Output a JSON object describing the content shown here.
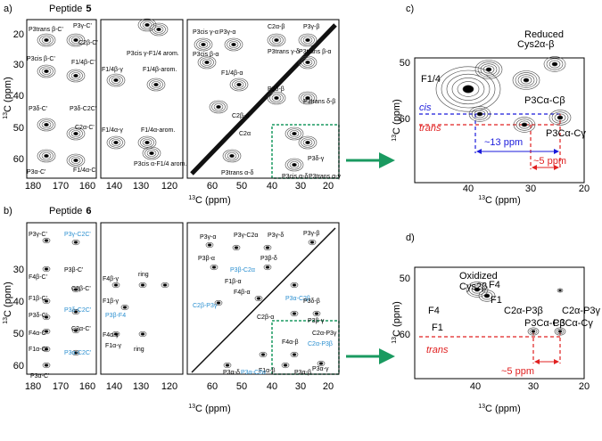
{
  "a": {
    "label": "a)",
    "title": "Peptide",
    "number": "5",
    "axis_sup": "13",
    "axis_text": "C (ppm)",
    "yticks": [
      20,
      30,
      40,
      50,
      60
    ],
    "xticks": [
      [
        180,
        170,
        160
      ],
      [
        140,
        130,
        120
      ],
      [
        60,
        50,
        40,
        30,
        20
      ]
    ],
    "peaks": [
      {
        "text": "P3trans β-C'"
      },
      {
        "text": "P3γ-C'"
      },
      {
        "text": "C2β-C'"
      },
      {
        "text": "P3cis β-C'"
      },
      {
        "text": "F1/4β-C'"
      },
      {
        "text": "P3δ-C'"
      },
      {
        "text": "P3δ-C2C'"
      },
      {
        "text": "C2α-C'"
      },
      {
        "text": "F1/4α-C'"
      },
      {
        "text": "P3α-C'"
      },
      {
        "text": "P3cis γ-F1/4 arom."
      },
      {
        "text": "F1/4β-γ"
      },
      {
        "text": "F1/4β-arom."
      },
      {
        "text": "F1/4α-γ"
      },
      {
        "text": "F1/4α-arom."
      },
      {
        "text": "P3cis α-F1/4 arom."
      },
      {
        "text": "P3cis γ-α"
      },
      {
        "text": "P3γ-α"
      },
      {
        "text": "C2α-β"
      },
      {
        "text": "P3γ-β"
      },
      {
        "text": "P3cis β-α"
      },
      {
        "text": "P3trans γ-δ"
      },
      {
        "text": "P3trans β-α"
      },
      {
        "text": "F1/4β-α"
      },
      {
        "text": "P3δ-β"
      },
      {
        "text": "P3trans δ-β"
      },
      {
        "text": "C2β-α"
      },
      {
        "text": "C2α"
      },
      {
        "text": "P3δ-γ"
      },
      {
        "text": "P3trans α-δ"
      },
      {
        "text": "P3cis α-δ"
      },
      {
        "text": "P3trans α-γ"
      }
    ]
  },
  "b": {
    "label": "b)",
    "title": "Peptide",
    "number": "6",
    "axis_sup": "13",
    "axis_text": "C (ppm)",
    "yticks": [
      30,
      40,
      50,
      60
    ],
    "xticks": [
      [
        180,
        170,
        160
      ],
      [
        140,
        130,
        120
      ],
      [
        60,
        50,
        40,
        30,
        20
      ]
    ],
    "peaks": [
      {
        "text": "P3γ-C'"
      },
      {
        "text": "P3γ-C2C'",
        "color": "#2a8fd0"
      },
      {
        "text": "P3β-C'"
      },
      {
        "text": "F4β-C'"
      },
      {
        "text": "F1β-C'"
      },
      {
        "text": "C2β-C'"
      },
      {
        "text": "P3δ-C'"
      },
      {
        "text": "P3δ-C2C'",
        "color": "#2a8fd0"
      },
      {
        "text": "F4α-C'"
      },
      {
        "text": "C2α-C'"
      },
      {
        "text": "F1α-C'"
      },
      {
        "text": "P3α-C2C'",
        "color": "#2a8fd0"
      },
      {
        "text": "P3α-C'"
      },
      {
        "text": "F4β-γ"
      },
      {
        "text": "ring"
      },
      {
        "text": "F1β-γ"
      },
      {
        "text": "P3β-F4",
        "color": "#2a8fd0"
      },
      {
        "text": "F1α-γ"
      },
      {
        "text": "F4α-γ"
      },
      {
        "text": "ring"
      },
      {
        "text": "P3γ-α"
      },
      {
        "text": "P3γ-C2α"
      },
      {
        "text": "P3γ-δ"
      },
      {
        "text": "P3γ-β"
      },
      {
        "text": "P3β-α"
      },
      {
        "text": "P3β-C2α",
        "color": "#2a8fd0"
      },
      {
        "text": "P3β-δ"
      },
      {
        "text": "C2β-P3γ",
        "color": "#2a8fd0"
      },
      {
        "text": "F1β-α"
      },
      {
        "text": "F4β-α"
      },
      {
        "text": "C2β-α"
      },
      {
        "text": "P3α-C2β",
        "color": "#2a8fd0"
      },
      {
        "text": "P3δ-β"
      },
      {
        "text": "P3β-γ"
      },
      {
        "text": "C2α-P3β",
        "color": "#2a8fd0"
      },
      {
        "text": "C2α-P3γ"
      },
      {
        "text": "F4α-β"
      },
      {
        "text": "F1α-β"
      },
      {
        "text": "P3α-γ"
      },
      {
        "text": "P3α-C2α",
        "color": "#2a8fd0"
      },
      {
        "text": "P3α-δ"
      },
      {
        "text": "P3α-β"
      }
    ]
  },
  "c": {
    "label": "c)",
    "axis_sup": "13",
    "axis_text": "C (ppm)",
    "yticks": [
      50,
      60
    ],
    "xticks": [
      40,
      30,
      20
    ],
    "peaks": [
      {
        "text": "F1/4"
      },
      {
        "text": "Reduced"
      },
      {
        "text": "Cys2α-β"
      },
      {
        "text": "P3Cα-Cβ"
      },
      {
        "text": "P3Cα-Cγ"
      },
      {
        "text": "cis",
        "color": "#1a1adb"
      },
      {
        "text": "trans",
        "color": "#e02020"
      },
      {
        "text": "~13 ppm",
        "color": "#1a1adb"
      },
      {
        "text": "~5 ppm",
        "color": "#e02020"
      }
    ]
  },
  "d": {
    "label": "d)",
    "axis_sup": "13",
    "axis_text": "C (ppm)",
    "yticks": [
      50,
      60
    ],
    "xticks": [
      40,
      30,
      20
    ],
    "peaks": [
      {
        "text": "Oxidized"
      },
      {
        "text": "Cys2β"
      },
      {
        "text": "F4"
      },
      {
        "text": "F1"
      },
      {
        "text": "F4"
      },
      {
        "text": "C2α-P3β"
      },
      {
        "text": "C2α-P3γ"
      },
      {
        "text": "F1"
      },
      {
        "text": "P3Cα-Cβ"
      },
      {
        "text": "P3Cα-Cγ"
      },
      {
        "text": "trans",
        "color": "#e02020"
      },
      {
        "text": "~5 ppm",
        "color": "#e02020"
      }
    ]
  }
}
